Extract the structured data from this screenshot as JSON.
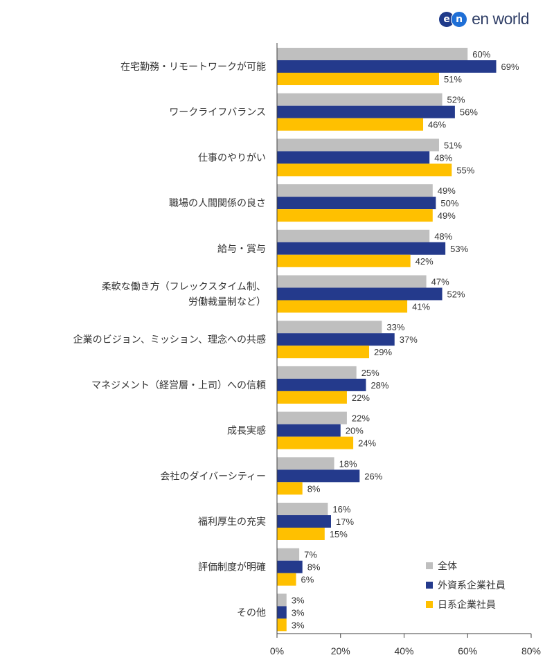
{
  "brand": {
    "name": "en world",
    "icon": "en-logo-icon"
  },
  "colors": {
    "overall": "#bfbfbf",
    "foreign": "#243a8c",
    "japanese": "#ffc000",
    "axis": "#404040"
  },
  "chart_data": {
    "type": "bar",
    "orientation": "horizontal",
    "categories": [
      [
        "在宅勤務・リモートワークが可能"
      ],
      [
        "ワークライフバランス"
      ],
      [
        "仕事のやりがい"
      ],
      [
        "職場の人間関係の良さ"
      ],
      [
        "給与・賞与"
      ],
      [
        "柔軟な働き方（フレックスタイム制、",
        "労働裁量制など）"
      ],
      [
        "企業のビジョン、ミッション、理念への共感"
      ],
      [
        "マネジメント（経営層・上司）への信頼"
      ],
      [
        "成長実感"
      ],
      [
        "会社のダイバーシティー"
      ],
      [
        "福利厚生の充実"
      ],
      [
        "評価制度が明確"
      ],
      [
        "その他"
      ]
    ],
    "series": [
      {
        "name": "全体",
        "values": [
          60,
          52,
          51,
          49,
          48,
          47,
          33,
          25,
          22,
          18,
          16,
          7,
          3
        ]
      },
      {
        "name": "外資系企業社員",
        "values": [
          69,
          56,
          48,
          50,
          53,
          52,
          37,
          28,
          20,
          26,
          17,
          8,
          3
        ]
      },
      {
        "name": "日系企業社員",
        "values": [
          51,
          46,
          55,
          49,
          42,
          41,
          29,
          22,
          24,
          8,
          15,
          6,
          3
        ]
      }
    ],
    "xlim": [
      0,
      80
    ],
    "xticks": [
      0,
      20,
      40,
      60,
      80
    ],
    "value_suffix": "%",
    "grid": false,
    "legend_position": "bottom-right"
  }
}
